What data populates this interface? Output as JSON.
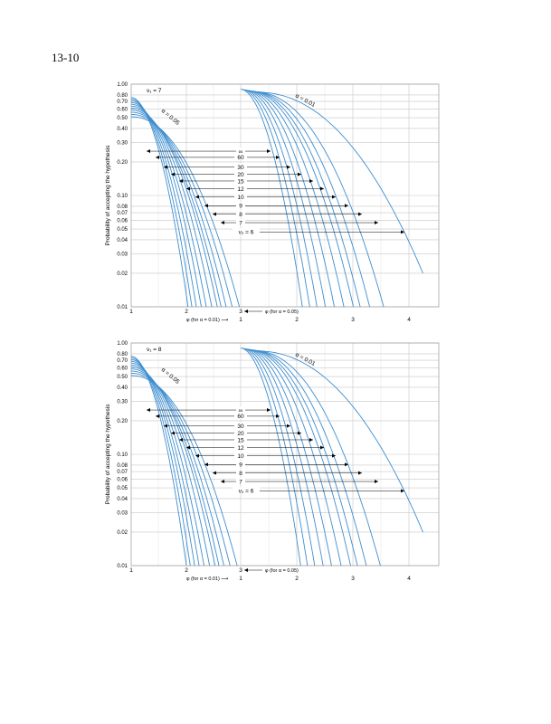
{
  "page": {
    "number_label": "13-10"
  },
  "chart_data": [
    {
      "type": "line",
      "title": "",
      "xlabel": "φ (for α = 0.01)",
      "xlabel_alt": "φ (for α = 0.05)",
      "ylabel": "Probability of accepting the hypothesis",
      "y_scale": "log",
      "ylim": [
        0.01,
        1.0
      ],
      "xlim_alpha05": [
        1,
        3
      ],
      "xlim_alpha01": [
        1,
        4.5
      ],
      "y_tick_labels": [
        "1.00",
        "0.80",
        "0.70",
        "0.60",
        "0.50",
        "0.40",
        "0.30",
        "0.20",
        "0.10",
        "0.08",
        "0.07",
        "0.06",
        "0.05",
        "0.04",
        "0.03",
        "0.02",
        "0.01"
      ],
      "x_tick_labels_alpha05": [
        "1",
        "2",
        "3"
      ],
      "x_tick_labels_alpha01": [
        "1",
        "2",
        "3",
        "4"
      ],
      "nu1_label": "ν₁ = 7",
      "alpha_labels": [
        "α = 0.05",
        "α = 0.01"
      ],
      "nu2_labels": [
        "∞",
        "60",
        "30",
        "20",
        "15",
        "12",
        "10",
        "9",
        "8",
        "7",
        "ν₂ = 6"
      ],
      "series": [
        {
          "alpha": 0.05,
          "nu2": "∞",
          "x_at_0_01": 2.03
        },
        {
          "alpha": 0.05,
          "nu2": "60",
          "x_at_0_01": 2.1
        },
        {
          "alpha": 0.05,
          "nu2": "30",
          "x_at_0_01": 2.18
        },
        {
          "alpha": 0.05,
          "nu2": "20",
          "x_at_0_01": 2.27
        },
        {
          "alpha": 0.05,
          "nu2": "15",
          "x_at_0_01": 2.36
        },
        {
          "alpha": 0.05,
          "nu2": "12",
          "x_at_0_01": 2.46
        },
        {
          "alpha": 0.05,
          "nu2": "10",
          "x_at_0_01": 2.56
        },
        {
          "alpha": 0.05,
          "nu2": "9",
          "x_at_0_01": 2.63
        },
        {
          "alpha": 0.05,
          "nu2": "8",
          "x_at_0_01": 2.72
        },
        {
          "alpha": 0.05,
          "nu2": "7",
          "x_at_0_01": 2.83
        },
        {
          "alpha": 0.05,
          "nu2": "6",
          "x_at_0_01": 2.96
        },
        {
          "alpha": 0.01,
          "nu2": "∞",
          "x_at_0_01": 2.1
        },
        {
          "alpha": 0.01,
          "nu2": "60",
          "x_at_0_01": 2.23
        },
        {
          "alpha": 0.01,
          "nu2": "30",
          "x_at_0_01": 2.36
        },
        {
          "alpha": 0.01,
          "nu2": "20",
          "x_at_0_01": 2.51
        },
        {
          "alpha": 0.01,
          "nu2": "15",
          "x_at_0_01": 2.67
        },
        {
          "alpha": 0.01,
          "nu2": "12",
          "x_at_0_01": 2.84
        },
        {
          "alpha": 0.01,
          "nu2": "10",
          "x_at_0_01": 3.01
        },
        {
          "alpha": 0.01,
          "nu2": "9",
          "x_at_0_01": 3.13
        },
        {
          "alpha": 0.01,
          "nu2": "8",
          "x_at_0_01": 3.3
        },
        {
          "alpha": 0.01,
          "nu2": "7",
          "x_at_0_01": 3.55
        },
        {
          "alpha": 0.01,
          "nu2": "6",
          "x_at_0_02": 4.25
        }
      ]
    },
    {
      "type": "line",
      "title": "",
      "xlabel": "φ (for α = 0.01)",
      "xlabel_alt": "φ (for α = 0.05)",
      "ylabel": "Probability of accepting the hypothesis",
      "y_scale": "log",
      "ylim": [
        0.01,
        1.0
      ],
      "xlim_alpha05": [
        1,
        3
      ],
      "xlim_alpha01": [
        1,
        4.5
      ],
      "y_tick_labels": [
        "1.00",
        "0.80",
        "0.70",
        "0.60",
        "0.50",
        "0.40",
        "0.30",
        "0.20",
        "0.10",
        "0.08",
        "0.07",
        "0.06",
        "0.05",
        "0.04",
        "0.03",
        "0.02",
        "0.01"
      ],
      "x_tick_labels_alpha05": [
        "1",
        "2",
        "3"
      ],
      "x_tick_labels_alpha01": [
        "1",
        "2",
        "3",
        "4"
      ],
      "nu1_label": "ν₁ = 8",
      "alpha_labels": [
        "α = 0.05",
        "α = 0.01"
      ],
      "nu2_labels": [
        "∞",
        "60",
        "30",
        "20",
        "15",
        "12",
        "10",
        "9",
        "8",
        "7",
        "ν₂ = 6"
      ],
      "series": [
        {
          "alpha": 0.05,
          "nu2": "∞",
          "x_at_0_01": 2.0
        },
        {
          "alpha": 0.05,
          "nu2": "60",
          "x_at_0_01": 2.07
        },
        {
          "alpha": 0.05,
          "nu2": "30",
          "x_at_0_01": 2.15
        },
        {
          "alpha": 0.05,
          "nu2": "20",
          "x_at_0_01": 2.23
        },
        {
          "alpha": 0.05,
          "nu2": "15",
          "x_at_0_01": 2.32
        },
        {
          "alpha": 0.05,
          "nu2": "12",
          "x_at_0_01": 2.42
        },
        {
          "alpha": 0.05,
          "nu2": "10",
          "x_at_0_01": 2.52
        },
        {
          "alpha": 0.05,
          "nu2": "9",
          "x_at_0_01": 2.59
        },
        {
          "alpha": 0.05,
          "nu2": "8",
          "x_at_0_01": 2.68
        },
        {
          "alpha": 0.05,
          "nu2": "7",
          "x_at_0_01": 2.79
        },
        {
          "alpha": 0.05,
          "nu2": "6",
          "x_at_0_01": 2.92
        },
        {
          "alpha": 0.01,
          "nu2": "∞",
          "x_at_0_01": 2.07
        },
        {
          "alpha": 0.01,
          "nu2": "60",
          "x_at_0_01": 2.19
        },
        {
          "alpha": 0.01,
          "nu2": "30",
          "x_at_0_01": 2.32
        },
        {
          "alpha": 0.01,
          "nu2": "20",
          "x_at_0_01": 2.47
        },
        {
          "alpha": 0.01,
          "nu2": "15",
          "x_at_0_01": 2.62
        },
        {
          "alpha": 0.01,
          "nu2": "12",
          "x_at_0_01": 2.79
        },
        {
          "alpha": 0.01,
          "nu2": "10",
          "x_at_0_01": 2.96
        },
        {
          "alpha": 0.01,
          "nu2": "9",
          "x_at_0_01": 3.08
        },
        {
          "alpha": 0.01,
          "nu2": "8",
          "x_at_0_01": 3.24
        },
        {
          "alpha": 0.01,
          "nu2": "7",
          "x_at_0_01": 3.49
        },
        {
          "alpha": 0.01,
          "nu2": "6",
          "x_at_0_02": 4.25
        }
      ]
    }
  ],
  "colors": {
    "curve": "#3e8ed0",
    "grid": "#c8c8c8",
    "text": "#000000"
  }
}
